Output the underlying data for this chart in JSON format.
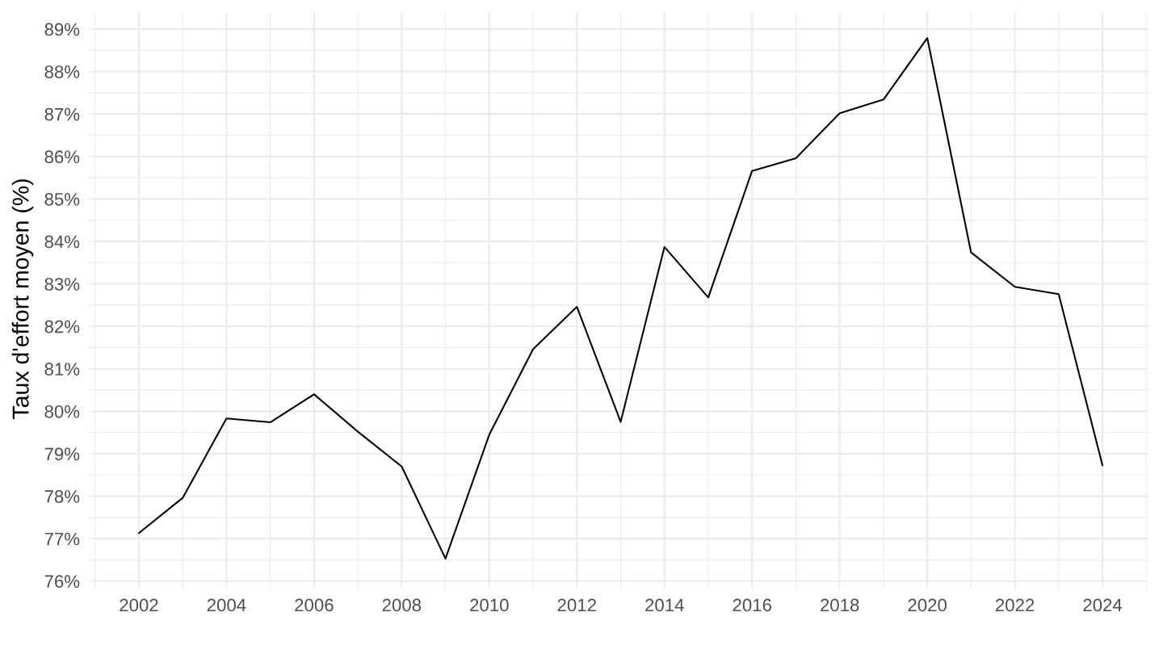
{
  "chart_data": {
    "type": "line",
    "ylabel": "Taux d'effort moyen (%)",
    "x": [
      2002,
      2003,
      2004,
      2005,
      2006,
      2007,
      2008,
      2009,
      2010,
      2011,
      2012,
      2013,
      2014,
      2015,
      2016,
      2017,
      2018,
      2019,
      2020,
      2021,
      2022,
      2023,
      2024
    ],
    "series": [
      {
        "color": "#000000",
        "values": [
          77.13,
          77.96,
          79.83,
          79.74,
          80.4,
          79.52,
          78.7,
          76.53,
          79.45,
          81.46,
          82.46,
          79.75,
          83.87,
          82.68,
          85.66,
          85.96,
          87.02,
          87.34,
          88.79,
          83.74,
          82.93,
          82.76,
          78.73
        ]
      }
    ],
    "xlim": [
      2000.95,
      2025.05
    ],
    "xticks": [
      {
        "value": 2001,
        "label": null
      },
      2002,
      {
        "value": 2003,
        "label": null
      },
      2004,
      {
        "value": 2005,
        "label": null
      },
      2006,
      {
        "value": 2007,
        "label": null
      },
      2008,
      {
        "value": 2009,
        "label": null
      },
      2010,
      {
        "value": 2011,
        "label": null
      },
      2012,
      {
        "value": 2013,
        "label": null
      },
      2014,
      {
        "value": 2015,
        "label": null
      },
      2016,
      {
        "value": 2017,
        "label": null
      },
      2018,
      {
        "value": 2019,
        "label": null
      },
      2020,
      {
        "value": 2021,
        "label": null
      },
      2022,
      {
        "value": 2023,
        "label": null
      },
      2024,
      {
        "value": 2025,
        "label": null
      }
    ],
    "ylim": [
      75.9,
      89.4
    ],
    "yticks": [
      {
        "value": 76,
        "label": "76%"
      },
      {
        "value": 76.5,
        "label": null
      },
      {
        "value": 77,
        "label": "77%"
      },
      {
        "value": 77.5,
        "label": null
      },
      {
        "value": 78,
        "label": "78%"
      },
      {
        "value": 78.5,
        "label": null
      },
      {
        "value": 79,
        "label": "79%"
      },
      {
        "value": 79.5,
        "label": null
      },
      {
        "value": 80,
        "label": "80%"
      },
      {
        "value": 80.5,
        "label": null
      },
      {
        "value": 81,
        "label": "81%"
      },
      {
        "value": 81.5,
        "label": null
      },
      {
        "value": 82,
        "label": "82%"
      },
      {
        "value": 82.5,
        "label": null
      },
      {
        "value": 83,
        "label": "83%"
      },
      {
        "value": 83.5,
        "label": null
      },
      {
        "value": 84,
        "label": "84%"
      },
      {
        "value": 84.5,
        "label": null
      },
      {
        "value": 85,
        "label": "85%"
      },
      {
        "value": 85.5,
        "label": null
      },
      {
        "value": 86,
        "label": "86%"
      },
      {
        "value": 86.5,
        "label": null
      },
      {
        "value": 87,
        "label": "87%"
      },
      {
        "value": 87.5,
        "label": null
      },
      {
        "value": 88,
        "label": "88%"
      },
      {
        "value": 88.5,
        "label": null
      },
      {
        "value": 89,
        "label": "89%"
      }
    ],
    "grid": true,
    "line_style": "solid"
  }
}
